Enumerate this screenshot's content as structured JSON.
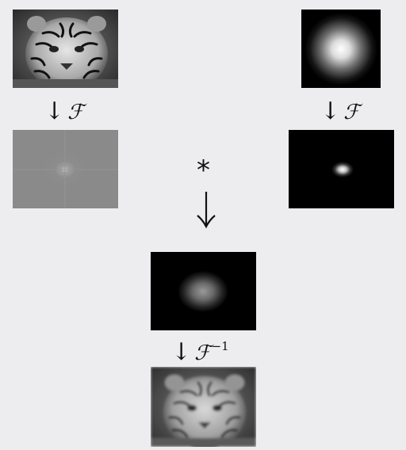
{
  "fourier_symbol": "ℱ",
  "inverse_exponent": "−1",
  "down_arrow": "↓",
  "convolution_symbol": "*",
  "colors": {
    "background": "#ededf0",
    "panel_dark": "#000000",
    "panel_gray": "#8a8a8a",
    "text": "#111111"
  },
  "icons": {
    "top_left": "tiger-photo-image",
    "top_right": "gaussian-kernel-image",
    "mid_left": "tiger-fourier-spectrum-image",
    "mid_right": "kernel-fourier-spectrum-image",
    "product": "product-spectrum-image",
    "result": "blurred-tiger-image"
  }
}
